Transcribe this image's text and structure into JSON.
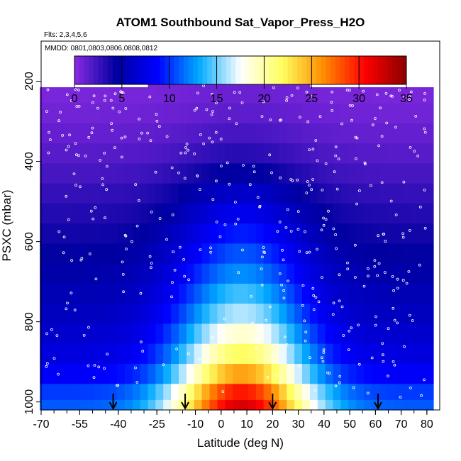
{
  "chart_data": {
    "type": "heatmap",
    "title": "ATOM1 Southbound Sat_Vapor_Press_H2O",
    "flights_text": "Flts: 2,3,4,5,6",
    "dates_text": "MMDD: 0801,0803,0806,0808,0812",
    "xlabel": "Latitude (deg N)",
    "ylabel": "PSXC (mbar)",
    "xlim": [
      -70,
      85
    ],
    "ylim": [
      1020,
      100
    ],
    "x_ticks": [
      -70,
      -55,
      -40,
      -25,
      -10,
      0,
      10,
      20,
      30,
      40,
      50,
      60,
      70,
      80
    ],
    "x_tick_labels": [
      "-70",
      "-55",
      "-40",
      "-25",
      "-10",
      "0",
      "10",
      "20",
      "30",
      "40",
      "50",
      "60",
      "70",
      "80"
    ],
    "y_ticks": [
      200,
      400,
      600,
      800,
      1000
    ],
    "y_tick_labels": [
      "200",
      "400",
      "600",
      "800",
      "1000"
    ],
    "colorbar": {
      "range": [
        0,
        35
      ],
      "ticks": [
        0,
        5,
        10,
        15,
        20,
        25,
        30,
        35
      ],
      "tick_labels": [
        "0",
        "5",
        "10",
        "15",
        "20",
        "25",
        "30",
        "35"
      ],
      "colors": [
        "#8a2be2",
        "#0000a0",
        "#0000ff",
        "#00aaff",
        "#ffffff",
        "#ffff60",
        "#ff8c00",
        "#ff0000",
        "#8b0000"
      ]
    },
    "arrows_latitude": [
      -42,
      -14,
      20,
      61
    ],
    "latitude_bins": [
      -69,
      -66,
      -63,
      -60,
      -57,
      -54,
      -51,
      -48,
      -45,
      -42,
      -39,
      -36,
      -33,
      -30,
      -27,
      -24,
      -21,
      -18,
      -15,
      -12,
      -9,
      -6,
      -3,
      0,
      3,
      6,
      9,
      12,
      15,
      18,
      21,
      24,
      27,
      30,
      33,
      36,
      39,
      42,
      45,
      48,
      51,
      54,
      57,
      60,
      63,
      66,
      69,
      72,
      75,
      78,
      81
    ],
    "pressure_levels": [
      180,
      230,
      280,
      330,
      380,
      430,
      480,
      530,
      580,
      630,
      680,
      730,
      780,
      830,
      880,
      930,
      980,
      1010
    ],
    "profile": {
      "pressure": [
        150,
        200,
        300,
        400,
        500,
        600,
        700,
        800,
        900,
        950,
        1000
      ],
      "equator_value": [
        0.5,
        0.8,
        1.6,
        3.5,
        7,
        10,
        13,
        17,
        23,
        27,
        32
      ],
      "polar_value": [
        0.3,
        0.4,
        0.9,
        1.8,
        3,
        4,
        5,
        6,
        7.5,
        9,
        11
      ],
      "center_latitude": 8,
      "half_width_deg": 26
    }
  }
}
